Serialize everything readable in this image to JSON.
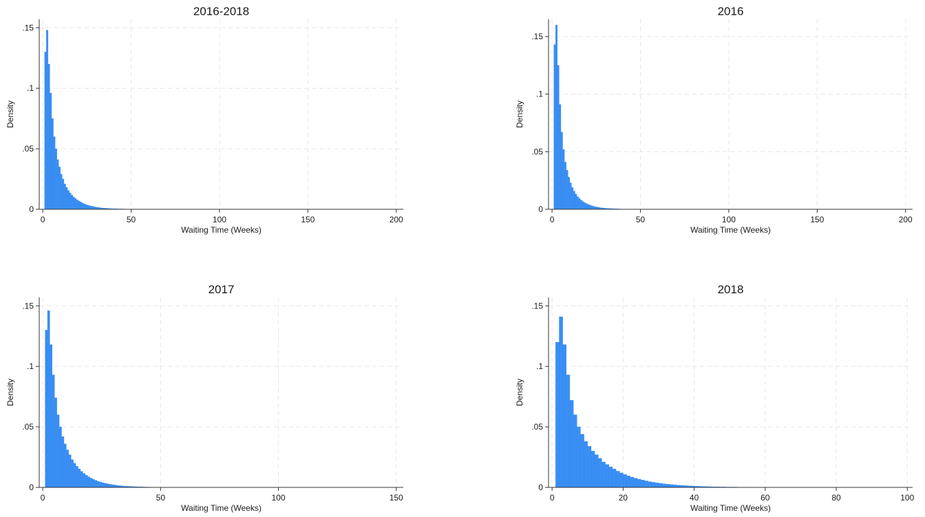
{
  "colors": {
    "bar": "#3a8ff5",
    "grid": "#e6e6e6",
    "axis": "#333333"
  },
  "chart_data": [
    {
      "type": "bar",
      "title": "2016-2018",
      "xlabel": "Waiting Time (Weeks)",
      "ylabel": "Density",
      "xlim": [
        -2,
        204
      ],
      "ylim": [
        0,
        0.157
      ],
      "xticks": [
        0,
        50,
        100,
        150,
        200
      ],
      "xtick_labels": [
        "0",
        "50",
        "100",
        "150",
        "200"
      ],
      "yticks": [
        0,
        0.05,
        0.1,
        0.15
      ],
      "ytick_labels": [
        "0",
        ".05",
        ".1",
        ".15"
      ],
      "grid": true,
      "legend": "none",
      "bin_width": 1,
      "bin_start": 1,
      "values": [
        0.13,
        0.148,
        0.12,
        0.096,
        0.075,
        0.06,
        0.05,
        0.041,
        0.035,
        0.029,
        0.025,
        0.021,
        0.018,
        0.0155,
        0.0135,
        0.0117,
        0.0102,
        0.0089,
        0.0078,
        0.0068,
        0.006,
        0.0052,
        0.0045,
        0.0039,
        0.0034,
        0.003,
        0.0026,
        0.0023,
        0.002,
        0.0017,
        0.0015,
        0.0013,
        0.0011,
        0.001,
        0.0009,
        0.0008,
        0.0007,
        0.0006,
        0.0005,
        0.0005,
        0.0004,
        0.0004,
        0.0003,
        0.0003,
        0.0003,
        0.0002,
        0.0002,
        0.0002,
        0.0002,
        0.0001
      ]
    },
    {
      "type": "bar",
      "title": "2016",
      "xlabel": "Waiting Time (Weeks)",
      "ylabel": "Density",
      "xlim": [
        -2,
        204
      ],
      "ylim": [
        0,
        0.165
      ],
      "xticks": [
        0,
        50,
        100,
        150,
        200
      ],
      "xtick_labels": [
        "0",
        "50",
        "100",
        "150",
        "200"
      ],
      "yticks": [
        0,
        0.05,
        0.1,
        0.15
      ],
      "ytick_labels": [
        "0",
        ".05",
        ".1",
        ".15"
      ],
      "grid": true,
      "legend": "none",
      "bin_width": 1,
      "bin_start": 1,
      "values": [
        0.143,
        0.16,
        0.125,
        0.091,
        0.067,
        0.052,
        0.041,
        0.034,
        0.028,
        0.023,
        0.019,
        0.0158,
        0.0132,
        0.011,
        0.0093,
        0.0079,
        0.0067,
        0.0057,
        0.0049,
        0.0042,
        0.0036,
        0.0031,
        0.0026,
        0.0022,
        0.0019,
        0.0016,
        0.0014,
        0.0012,
        0.001,
        0.0009,
        0.0008,
        0.0007,
        0.0006,
        0.0005,
        0.0004,
        0.0004,
        0.0003,
        0.0003,
        0.0002,
        0.0002,
        0.0002,
        0.0001,
        0.0001
      ]
    },
    {
      "type": "bar",
      "title": "2017",
      "xlabel": "Waiting Time (Weeks)",
      "ylabel": "Density",
      "xlim": [
        -1.5,
        153
      ],
      "ylim": [
        0,
        0.157
      ],
      "xticks": [
        0,
        50,
        100,
        150
      ],
      "xtick_labels": [
        "0",
        "50",
        "100",
        "150"
      ],
      "yticks": [
        0,
        0.05,
        0.1,
        0.15
      ],
      "ytick_labels": [
        "0",
        ".05",
        ".1",
        ".15"
      ],
      "grid": true,
      "legend": "none",
      "bin_width": 1,
      "bin_start": 1,
      "values": [
        0.13,
        0.146,
        0.118,
        0.093,
        0.074,
        0.06,
        0.05,
        0.042,
        0.036,
        0.031,
        0.027,
        0.023,
        0.02,
        0.0175,
        0.0152,
        0.0133,
        0.0116,
        0.0101,
        0.0088,
        0.0077,
        0.0067,
        0.0059,
        0.0051,
        0.0045,
        0.0039,
        0.0034,
        0.003,
        0.0026,
        0.0023,
        0.002,
        0.0017,
        0.0015,
        0.0013,
        0.0011,
        0.001,
        0.0009,
        0.0008,
        0.0007,
        0.0006,
        0.0005,
        0.0005,
        0.0004,
        0.0003,
        0.0003,
        0.0002,
        0.0002,
        0.0002,
        0.0001
      ]
    },
    {
      "type": "bar",
      "title": "2018",
      "xlabel": "Waiting Time (Weeks)",
      "ylabel": "Density",
      "xlim": [
        -1,
        101.5
      ],
      "ylim": [
        0,
        0.157
      ],
      "xticks": [
        0,
        20,
        40,
        60,
        80,
        100
      ],
      "xtick_labels": [
        "0",
        "20",
        "40",
        "60",
        "80",
        "100"
      ],
      "yticks": [
        0,
        0.05,
        0.1,
        0.15
      ],
      "ytick_labels": [
        "0",
        ".05",
        ".1",
        ".15"
      ],
      "grid": true,
      "legend": "none",
      "bin_width": 1,
      "bin_start": 1,
      "values": [
        0.12,
        0.141,
        0.118,
        0.093,
        0.072,
        0.06,
        0.05,
        0.044,
        0.038,
        0.034,
        0.03,
        0.027,
        0.024,
        0.021,
        0.019,
        0.017,
        0.0152,
        0.0135,
        0.012,
        0.0107,
        0.0095,
        0.0085,
        0.0076,
        0.0068,
        0.0061,
        0.0054,
        0.0048,
        0.0043,
        0.0038,
        0.0034,
        0.003,
        0.0027,
        0.0024,
        0.0021,
        0.0019,
        0.0017,
        0.0015,
        0.0013,
        0.0012,
        0.001,
        0.0009,
        0.0008,
        0.0007,
        0.0006,
        0.0005,
        0.0005,
        0.0004,
        0.0004,
        0.0003,
        0.0003,
        0.0003,
        0.0002,
        0.0002,
        0.0002,
        0.0002,
        0.0001,
        0.0001
      ]
    }
  ]
}
